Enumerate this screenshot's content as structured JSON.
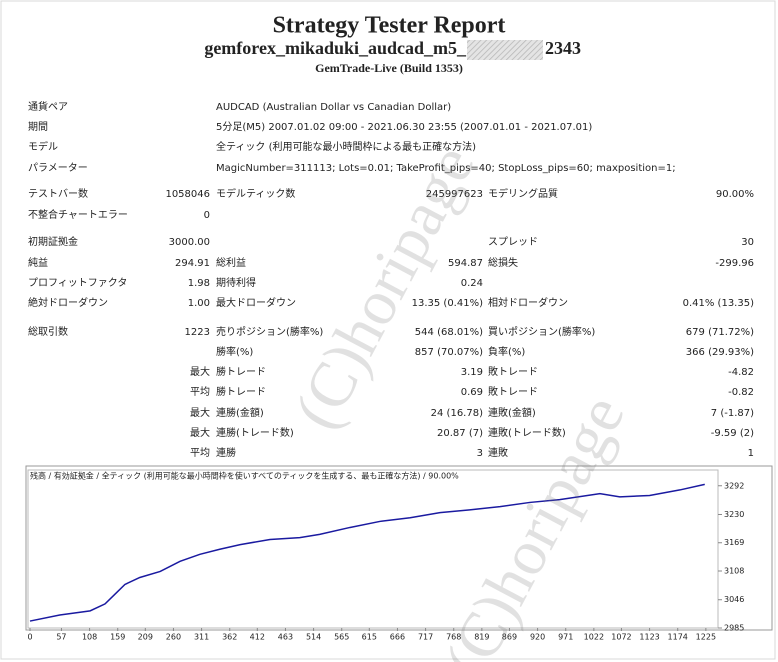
{
  "header": {
    "title": "Strategy Tester Report",
    "subtitle_prefix": "gemforex_mikaduki_audcad_m5_",
    "subtitle_suffix": "2343",
    "build": "GemTrade-Live (Build 1353)"
  },
  "watermark": "(C)horipage",
  "rows": [
    {
      "l1": "通貨ペア",
      "text": "AUDCAD (Australian Dollar vs Canadian Dollar)"
    },
    {
      "l1": "期間",
      "text": "5分足(M5) 2007.01.02 09:00 - 2021.06.30 23:55 (2007.01.01 - 2021.07.01)"
    },
    {
      "l1": "モデル",
      "text": "全ティック (利用可能な最小時間枠による最も正確な方法)"
    },
    {
      "l1": "パラメーター",
      "text": "MagicNumber=311113; Lots=0.01; TakeProfit_pips=40; StopLoss_pips=60; maxposition=1;"
    },
    {
      "l1": "テストバー数",
      "v1": "1058046",
      "l2": "モデルティック数",
      "v2": "245997623",
      "l3": "モデリング品質",
      "v3": "90.00%"
    },
    {
      "l1": "不整合チャートエラー",
      "v1": "0"
    },
    {
      "l1": "初期証拠金",
      "v1": "3000.00",
      "l3": "スプレッド",
      "v3": "30"
    },
    {
      "l1": "純益",
      "v1": "294.91",
      "l2": "総利益",
      "v2": "594.87",
      "l3": "総損失",
      "v3": "-299.96"
    },
    {
      "l1": "プロフィットファクタ",
      "v1": "1.98",
      "l2": "期待利得",
      "v2": "0.24"
    },
    {
      "l1": "絶対ドローダウン",
      "v1": "1.00",
      "l2": "最大ドローダウン",
      "v2": "13.35 (0.41%)",
      "l3": "相対ドローダウン",
      "v3": "0.41% (13.35)"
    },
    {
      "l1": "総取引数",
      "v1": "1223",
      "l2": "売りポジション(勝率%)",
      "v2": "544 (68.01%)",
      "l3": "買いポジション(勝率%)",
      "v3": "679 (71.72%)"
    },
    {
      "l2": "勝率(%)",
      "v2": "857 (70.07%)",
      "l3": "負率(%)",
      "v3": "366 (29.93%)"
    },
    {
      "v1": "最大",
      "l2": "勝トレード",
      "v2": "3.19",
      "l3": "敗トレード",
      "v3": "-4.82"
    },
    {
      "v1": "平均",
      "l2": "勝トレード",
      "v2": "0.69",
      "l3": "敗トレード",
      "v3": "-0.82"
    },
    {
      "v1": "最大",
      "l2": "連勝(金額)",
      "v2": "24 (16.78)",
      "l3": "連敗(金額)",
      "v3": "7 (-1.87)"
    },
    {
      "v1": "最大",
      "l2": "連勝(トレード数)",
      "v2": "20.87 (7)",
      "l3": "連敗(トレード数)",
      "v3": "-9.59 (2)"
    },
    {
      "v1": "平均",
      "l2": "連勝",
      "v2": "3",
      "l3": "連敗",
      "v3": "1"
    }
  ],
  "chart_data": {
    "type": "line",
    "legend": [
      {
        "text": "残高",
        "color": "#0000cc"
      },
      {
        "text": " / ",
        "color": "#333333"
      },
      {
        "text": "有効証拠金",
        "color": "#008800"
      },
      {
        "text": " / 全ティック (利用可能な最小時間枠を使いすべてのティックを生成する、最も正確な方法) / 90.00%",
        "color": "#333333"
      }
    ],
    "x": [
      0,
      54,
      109,
      136,
      154,
      172,
      199,
      236,
      272,
      308,
      344,
      381,
      435,
      489,
      525,
      580,
      634,
      689,
      743,
      797,
      852,
      906,
      960,
      1033,
      1069,
      1123,
      1178,
      1223
    ],
    "series": [
      {
        "name": "残高",
        "color": "#1a1aa0",
        "values": [
          3000,
          3013,
          3022,
          3037,
          3058,
          3079,
          3094,
          3107,
          3129,
          3144,
          3155,
          3165,
          3176,
          3180,
          3187,
          3202,
          3215,
          3223,
          3234,
          3240,
          3247,
          3256,
          3262,
          3275,
          3268,
          3271,
          3283,
          3295
        ]
      }
    ],
    "xlim": [
      0,
      1247
    ],
    "ylim": [
      2985,
      3326
    ],
    "xticks": [
      0,
      57,
      108,
      159,
      209,
      260,
      311,
      362,
      412,
      463,
      514,
      565,
      615,
      666,
      717,
      768,
      819,
      869,
      920,
      971,
      1022,
      1072,
      1123,
      1174,
      1225
    ],
    "yticks": [
      2985,
      3046,
      3108,
      3169,
      3230,
      3292
    ]
  }
}
